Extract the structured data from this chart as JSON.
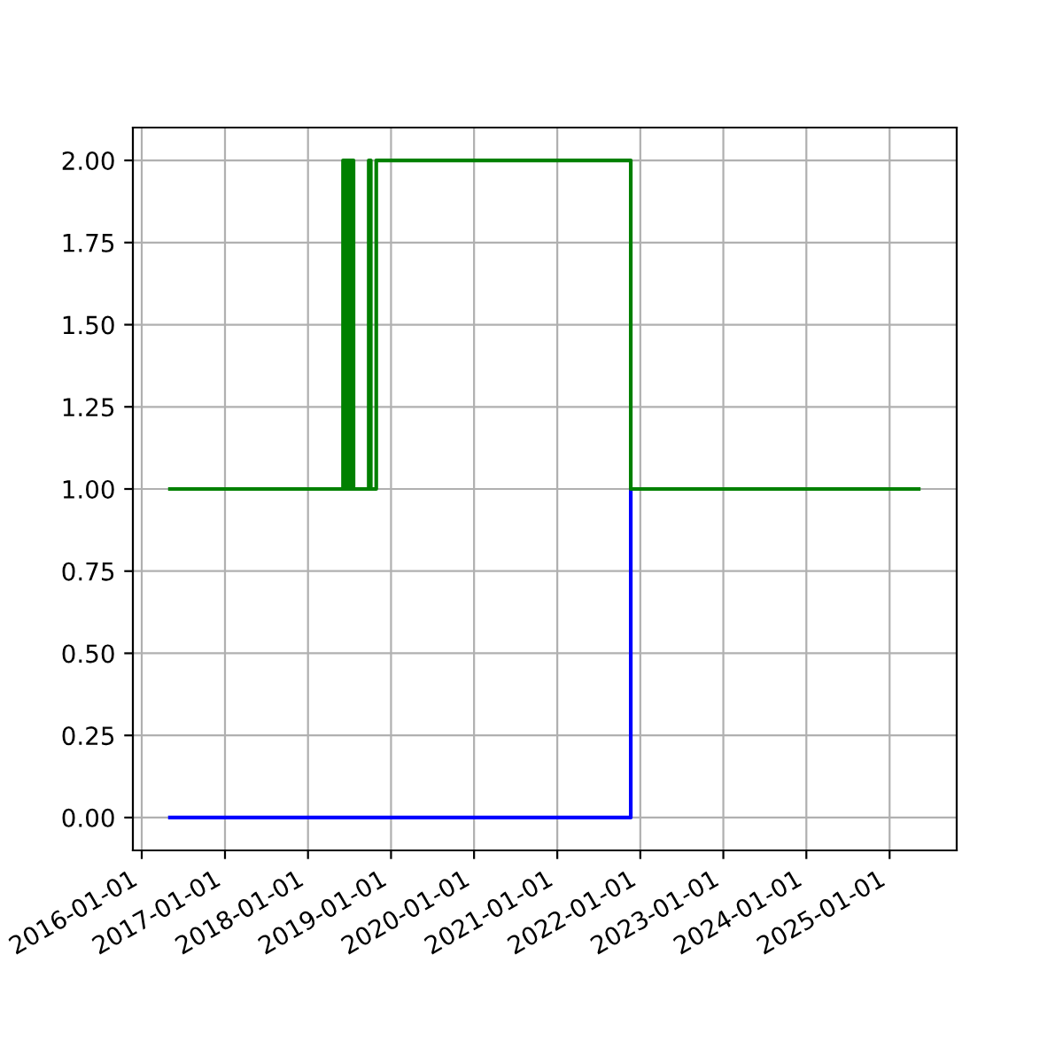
{
  "chart_data": {
    "type": "step",
    "series": [
      {
        "color": "#0000ff",
        "x": [
          "2016-05-04",
          "2021-11-20"
        ],
        "values": [
          0,
          1
        ]
      },
      {
        "color": "#008000",
        "x": [
          "2016-05-04",
          "2018-06-04",
          "2018-06-08",
          "2018-06-11",
          "2018-06-15",
          "2018-06-18",
          "2018-06-22",
          "2018-06-25",
          "2018-06-29",
          "2018-07-02",
          "2018-07-06",
          "2018-07-09",
          "2018-07-13",
          "2018-07-16",
          "2018-07-20",
          "2018-09-25",
          "2018-10-04",
          "2018-10-28",
          "2021-11-20",
          "2025-05-09"
        ],
        "values": [
          1,
          2,
          1,
          2,
          1,
          2,
          1,
          2,
          1,
          2,
          1,
          2,
          1,
          2,
          1,
          2,
          1,
          2,
          1,
          1
        ]
      }
    ],
    "xlim": [
      "2015-11-23",
      "2025-10-23"
    ],
    "xticks": [
      {
        "value": "2016-01-01",
        "label": "2016-01-01"
      },
      {
        "value": "2017-01-01",
        "label": "2017-01-01"
      },
      {
        "value": "2018-01-01",
        "label": "2018-01-01"
      },
      {
        "value": "2019-01-01",
        "label": "2019-01-01"
      },
      {
        "value": "2020-01-01",
        "label": "2020-01-01"
      },
      {
        "value": "2021-01-01",
        "label": "2021-01-01"
      },
      {
        "value": "2022-01-01",
        "label": "2022-01-01"
      },
      {
        "value": "2023-01-01",
        "label": "2023-01-01"
      },
      {
        "value": "2024-01-01",
        "label": "2024-01-01"
      },
      {
        "value": "2025-01-01",
        "label": "2025-01-01"
      }
    ],
    "ylim": [
      -0.1,
      2.1
    ],
    "yticks": [
      {
        "value": 0,
        "label": "0.00"
      },
      {
        "value": 0.25,
        "label": "0.25"
      },
      {
        "value": 0.5,
        "label": "0.50"
      },
      {
        "value": 0.75,
        "label": "0.75"
      },
      {
        "value": 1,
        "label": "1.00"
      },
      {
        "value": 1.25,
        "label": "1.25"
      },
      {
        "value": 1.5,
        "label": "1.50"
      },
      {
        "value": 1.75,
        "label": "1.75"
      },
      {
        "value": 2,
        "label": "2.00"
      }
    ],
    "grid": true
  }
}
